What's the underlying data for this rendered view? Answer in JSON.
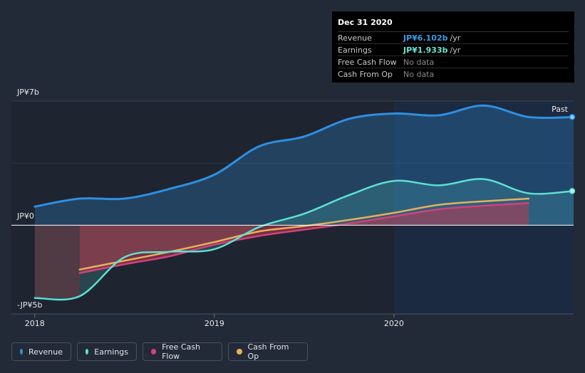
{
  "tooltip": {
    "date": "Dec 31 2020",
    "rows": [
      {
        "label": "Revenue",
        "value": "JP¥6.102b",
        "unit": "/yr",
        "color": "#3b9ae8"
      },
      {
        "label": "Earnings",
        "value": "JP¥1.933b",
        "unit": "/yr",
        "color": "#6de3d4"
      },
      {
        "label": "Free Cash Flow",
        "value": "No data",
        "unit": "",
        "color": ""
      },
      {
        "label": "Cash From Op",
        "value": "No data",
        "unit": "",
        "color": ""
      }
    ]
  },
  "legend": [
    {
      "label": "Revenue",
      "color": "#2f8fe0"
    },
    {
      "label": "Earnings",
      "color": "#5ee0d2"
    },
    {
      "label": "Free Cash Flow",
      "color": "#d1417d"
    },
    {
      "label": "Cash From Op",
      "color": "#e8b05a"
    }
  ],
  "chart_data": {
    "type": "line",
    "title": "",
    "xlabel": "",
    "ylabel": "",
    "y_unit": "JP¥ billions",
    "ylim": [
      -5,
      7
    ],
    "y_tick_labels": [
      {
        "value": 7,
        "label": "JP¥7b"
      },
      {
        "value": 0,
        "label": "JP¥0"
      },
      {
        "value": -5,
        "label": "-JP¥5b"
      }
    ],
    "x_ticks": [
      {
        "value": 2018.0,
        "label": "2018"
      },
      {
        "value": 2019.0,
        "label": "2019"
      },
      {
        "value": 2020.0,
        "label": "2020"
      }
    ],
    "xlim": [
      2017.87,
      2021.0
    ],
    "past_label": "Past",
    "past_start": 2020.0,
    "colors": {
      "revenue": "#2f8fe0",
      "earnings": "#5ee0d2",
      "fcf": "#d1417d",
      "cfo": "#e8b05a",
      "zero_line": "#ffffff"
    },
    "series": [
      {
        "name": "Revenue",
        "key": "revenue",
        "x": [
          2018.0,
          2018.25,
          2018.5,
          2018.75,
          2019.0,
          2019.25,
          2019.5,
          2019.75,
          2020.0,
          2020.25,
          2020.5,
          2020.75,
          2021.0
        ],
        "values": [
          1.05,
          1.5,
          1.5,
          2.05,
          2.85,
          4.45,
          5.0,
          6.0,
          6.3,
          6.2,
          6.75,
          6.1,
          6.1
        ]
      },
      {
        "name": "Earnings",
        "key": "earnings",
        "x": [
          2018.0,
          2018.25,
          2018.5,
          2018.75,
          2019.0,
          2019.25,
          2019.5,
          2019.75,
          2020.0,
          2020.25,
          2020.5,
          2020.75,
          2021.0
        ],
        "values": [
          -4.1,
          -4.0,
          -1.8,
          -1.5,
          -1.35,
          -0.1,
          0.65,
          1.7,
          2.5,
          2.25,
          2.6,
          1.8,
          1.93
        ]
      },
      {
        "name": "Free Cash Flow",
        "key": "fcf",
        "x": [
          2018.25,
          2018.5,
          2018.75,
          2019.0,
          2019.25,
          2019.5,
          2019.75,
          2020.0,
          2020.25,
          2020.5,
          2020.75
        ],
        "values": [
          -2.7,
          -2.2,
          -1.75,
          -1.1,
          -0.6,
          -0.25,
          0.1,
          0.5,
          0.9,
          1.1,
          1.25
        ]
      },
      {
        "name": "Cash From Op",
        "key": "cfo",
        "x": [
          2018.25,
          2018.5,
          2018.75,
          2019.0,
          2019.25,
          2019.5,
          2019.75,
          2020.0,
          2020.25,
          2020.5,
          2020.75
        ],
        "values": [
          -2.5,
          -2.0,
          -1.5,
          -0.95,
          -0.35,
          -0.05,
          0.3,
          0.7,
          1.15,
          1.35,
          1.5
        ]
      }
    ]
  }
}
